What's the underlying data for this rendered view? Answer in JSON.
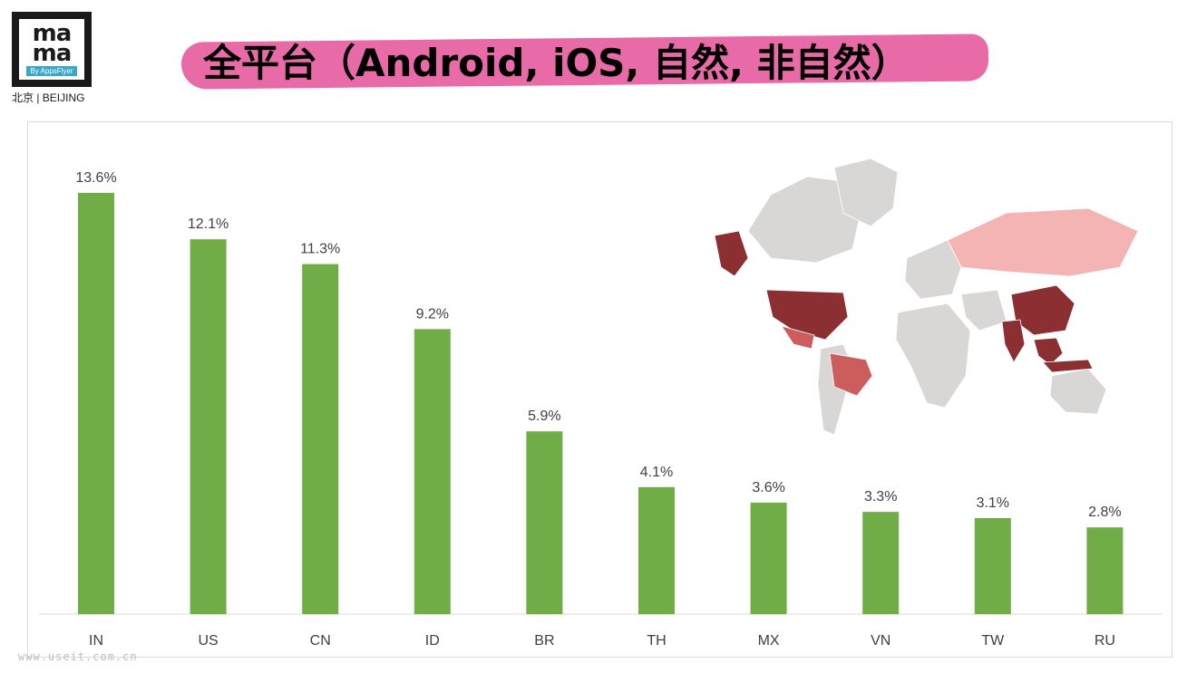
{
  "logo": {
    "word_top": "ma",
    "word_bottom": "ma",
    "by": "By AppsFlyer",
    "city": "北京 | BEIJING"
  },
  "title": "全平台（Android, iOS, 自然, 非自然）",
  "watermark": "www.useit.com.cn",
  "colors": {
    "bar": "#70ad47",
    "title_band": "#e86aa6",
    "map_dark": "#8b2f33",
    "map_mid": "#cd5c5c",
    "map_light": "#f4b4b4",
    "map_base": "#d9d6d6"
  },
  "chart_data": {
    "type": "bar",
    "categories": [
      "IN",
      "US",
      "CN",
      "ID",
      "BR",
      "TH",
      "MX",
      "VN",
      "TW",
      "RU"
    ],
    "values": [
      13.6,
      12.1,
      11.3,
      9.2,
      5.9,
      4.1,
      3.6,
      3.3,
      3.1,
      2.8
    ],
    "value_labels": [
      "13.6%",
      "12.1%",
      "11.3%",
      "9.2%",
      "5.9%",
      "4.1%",
      "3.6%",
      "3.3%",
      "3.1%",
      "2.8%"
    ],
    "ylim": [
      0,
      15
    ],
    "grid": false,
    "legend": "none"
  }
}
